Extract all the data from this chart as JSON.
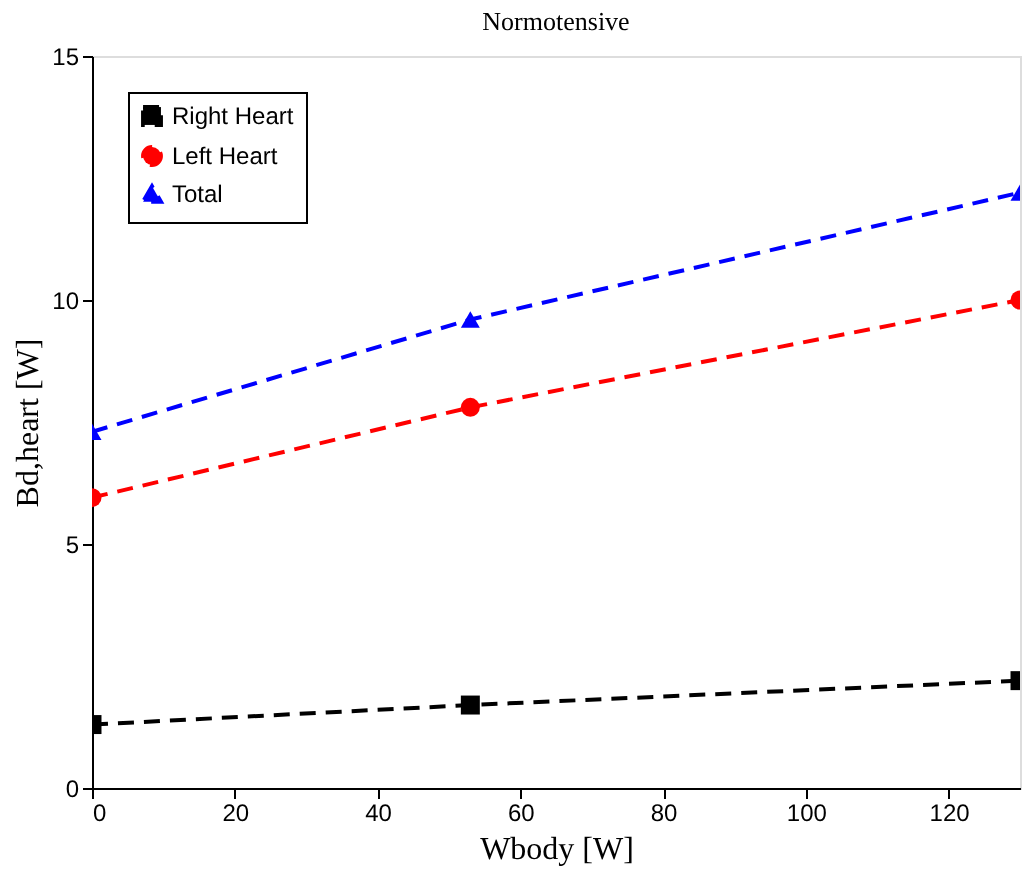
{
  "chart_data": {
    "type": "line",
    "title": "Normotensive",
    "xlabel": "Wbody [W]",
    "ylabel": "Bd,heart [W]",
    "xlim": [
      0,
      130
    ],
    "xticks": [
      0,
      20,
      40,
      60,
      80,
      100,
      120
    ],
    "ylim": [
      0,
      15
    ],
    "yticks": [
      0,
      5,
      10,
      15
    ],
    "grid": false,
    "legend": "top left",
    "line_style": "dashed",
    "series": [
      {
        "name": "Right Heart",
        "color": "#000000",
        "marker": "square",
        "x": [
          0,
          53,
          130
        ],
        "values": [
          1.3,
          1.7,
          2.2
        ]
      },
      {
        "name": "Left Heart",
        "color": "#ff0000",
        "marker": "circle",
        "x": [
          0,
          53,
          130
        ],
        "values": [
          5.95,
          7.8,
          10.0
        ]
      },
      {
        "name": "Total",
        "color": "#0000ff",
        "marker": "triangle",
        "x": [
          0,
          53,
          130
        ],
        "values": [
          7.3,
          9.6,
          12.2
        ]
      }
    ]
  }
}
